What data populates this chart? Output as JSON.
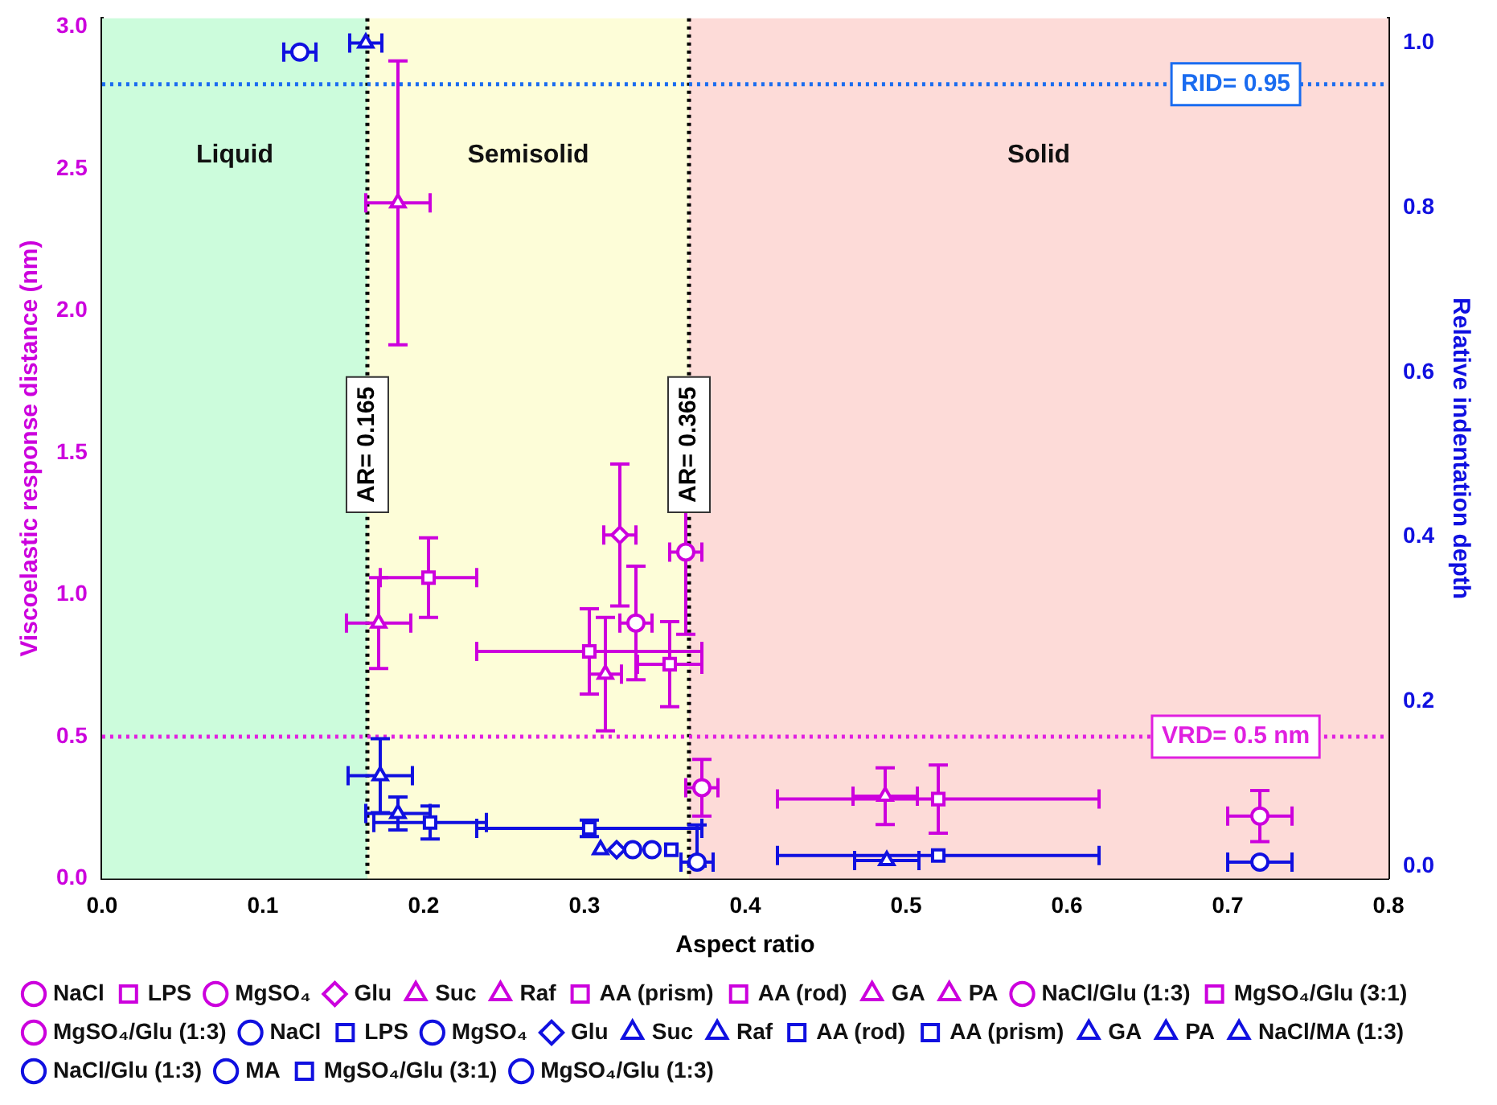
{
  "chart_data": {
    "type": "scatter",
    "xlabel": "Aspect ratio",
    "ylabel": "Viscoelastic response distance (nm)",
    "y2label": "Relative indentation depth",
    "xlim": [
      0,
      0.8
    ],
    "xticks": [
      {
        "value": 0,
        "label": "0.0"
      },
      0.1,
      0.2,
      0.3,
      0.4,
      0.5,
      0.6,
      0.7,
      0.8
    ],
    "ylim": [
      0,
      3.03
    ],
    "yticks": [
      {
        "value": 0,
        "label": "0.0"
      },
      0.5,
      {
        "value": 1,
        "label": "1.0"
      },
      1.5,
      {
        "value": 2,
        "label": "2.0"
      },
      2.5,
      {
        "value": 3,
        "label": "3.0"
      }
    ],
    "y2lim": [
      -0.015,
      1.03
    ],
    "y2ticks": [
      {
        "value": 0,
        "label": "0.0"
      },
      0.2,
      0.4,
      0.6,
      0.8,
      {
        "value": 1,
        "label": "1.0"
      }
    ],
    "grid": false,
    "legend": "bottom",
    "bands": [
      {
        "axis": "x",
        "from": 0,
        "to": 0.165,
        "label": "Liquid",
        "color": "#ccfcdc"
      },
      {
        "axis": "x",
        "from": 0.165,
        "to": 0.365,
        "label": "Semisolid",
        "color": "#fdfdd8"
      },
      {
        "axis": "x",
        "from": 0.365,
        "to": 0.8,
        "label": "Solid",
        "color": "#fddbd8"
      }
    ],
    "ref_lines": [
      {
        "axis": "x",
        "value": 0.165,
        "label": "AR= 0.165",
        "color": "#000000",
        "line_style": "dotted"
      },
      {
        "axis": "x",
        "value": 0.365,
        "label": "AR= 0.365",
        "color": "#000000",
        "line_style": "dotted"
      },
      {
        "axis": "y",
        "value": 0.5,
        "label": "VRD= 0.5 nm",
        "color": "#e020e0",
        "line_style": "dotted"
      },
      {
        "axis": "y2",
        "value": 0.95,
        "label": "RID= 0.95",
        "color": "#1a6cf0",
        "line_style": "dotted"
      }
    ],
    "series": [
      {
        "name": "NaCl",
        "color": "#cc00dd",
        "marker": "circle",
        "x": [
          0.72
        ],
        "values": [
          0.22
        ],
        "errors": [
          0.09
        ],
        "xerrors": [
          0.02
        ]
      },
      {
        "name": "LPS",
        "color": "#cc00dd",
        "marker": "square",
        "x": [
          0.52
        ],
        "values": [
          0.28
        ],
        "errors": [
          0.12
        ],
        "xerrors": [
          0.1
        ]
      },
      {
        "name": "MgSO₄",
        "color": "#cc00dd",
        "marker": "circle",
        "x": [
          0.373
        ],
        "values": [
          0.32
        ],
        "errors": [
          0.1
        ],
        "xerrors": [
          0.01
        ]
      },
      {
        "name": "Glu",
        "color": "#cc00dd",
        "marker": "diamond",
        "x": [
          0.322
        ],
        "values": [
          1.21
        ],
        "errors": [
          0.25
        ],
        "xerrors": [
          0.01
        ]
      },
      {
        "name": "Suc",
        "color": "#cc00dd",
        "marker": "triangle",
        "x": [
          0.184
        ],
        "values": [
          2.38
        ],
        "errors": [
          0.5
        ],
        "xerrors": [
          0.02
        ]
      },
      {
        "name": "Raf",
        "color": "#cc00dd",
        "marker": "triangle",
        "x": [
          0.487
        ],
        "values": [
          0.29
        ],
        "errors": [
          0.1
        ],
        "xerrors": [
          0.02
        ]
      },
      {
        "name": "AA (prism)",
        "color": "#cc00dd",
        "marker": "square",
        "x": [
          0.203
        ],
        "values": [
          1.06
        ],
        "errors": [
          0.14
        ],
        "xerrors": [
          0.03
        ]
      },
      {
        "name": "AA (rod)",
        "color": "#cc00dd",
        "marker": "square",
        "x": [
          0.303
        ],
        "values": [
          0.8
        ],
        "errors": [
          0.15
        ],
        "xerrors": [
          0.07
        ]
      },
      {
        "name": "GA",
        "color": "#cc00dd",
        "marker": "triangle",
        "x": [
          0.313
        ],
        "values": [
          0.72
        ],
        "errors": [
          0.2
        ],
        "xerrors": [
          0.01
        ]
      },
      {
        "name": "PA",
        "color": "#cc00dd",
        "marker": "triangle",
        "x": [
          0.172
        ],
        "values": [
          0.9
        ],
        "errors": [
          0.16
        ],
        "xerrors": [
          0.02
        ]
      },
      {
        "name": "NaCl/Glu (1:3)",
        "color": "#cc00dd",
        "marker": "circle",
        "x": [
          0.363
        ],
        "values": [
          1.15
        ],
        "errors": [
          0.29
        ],
        "xerrors": [
          0.01
        ]
      },
      {
        "name": "MgSO₄/Glu (3:1)",
        "color": "#cc00dd",
        "marker": "square",
        "x": [
          0.353
        ],
        "values": [
          0.755
        ],
        "errors": [
          0.15
        ],
        "xerrors": [
          0.02
        ]
      },
      {
        "name": "MgSO₄/Glu (1:3)",
        "color": "#cc00dd",
        "marker": "circle",
        "x": [
          0.332
        ],
        "values": [
          0.9
        ],
        "errors": [
          0.2
        ],
        "xerrors": [
          0.01
        ]
      },
      {
        "name": "NaCl",
        "color": "#1010e0",
        "marker": "circle",
        "axis": "y2",
        "x": [
          0.72
        ],
        "values": [
          0.005
        ],
        "xerrors": [
          0.02
        ]
      },
      {
        "name": "LPS",
        "color": "#1010e0",
        "marker": "square",
        "axis": "y2",
        "x": [
          0.52
        ],
        "values": [
          0.013
        ],
        "xerrors": [
          0.1
        ]
      },
      {
        "name": "MgSO₄",
        "color": "#1010e0",
        "marker": "circle",
        "axis": "y2",
        "x": [
          0.33
        ],
        "values": [
          0.02
        ]
      },
      {
        "name": "Glu",
        "color": "#1010e0",
        "marker": "diamond",
        "axis": "y2",
        "x": [
          0.32
        ],
        "values": [
          0.02
        ]
      },
      {
        "name": "Suc",
        "color": "#1010e0",
        "marker": "triangle",
        "axis": "y2",
        "x": [
          0.31
        ],
        "values": [
          0.02
        ]
      },
      {
        "name": "Raf",
        "color": "#1010e0",
        "marker": "triangle",
        "axis": "y2",
        "x": [
          0.488
        ],
        "values": [
          0.007
        ],
        "xerrors": [
          0.02
        ]
      },
      {
        "name": "AA (rod)",
        "color": "#1010e0",
        "marker": "square",
        "axis": "y2",
        "x": [
          0.303
        ],
        "values": [
          0.046
        ],
        "errors": [
          0.01
        ],
        "xerrors": [
          0.07
        ]
      },
      {
        "name": "AA (prism)",
        "color": "#1010e0",
        "marker": "square",
        "axis": "y2",
        "x": [
          0.204
        ],
        "values": [
          0.053
        ],
        "errors": [
          0.02
        ],
        "xerrors": [
          0.035
        ]
      },
      {
        "name": "GA",
        "color": "#1010e0",
        "marker": "triangle",
        "axis": "y2",
        "x": [
          0.184
        ],
        "values": [
          0.064
        ],
        "errors": [
          0.02
        ],
        "xerrors": [
          0.02
        ]
      },
      {
        "name": "PA",
        "color": "#1010e0",
        "marker": "triangle",
        "axis": "y2",
        "x": [
          0.173
        ],
        "values": [
          0.11
        ],
        "errors": [
          0.045
        ],
        "xerrors": [
          0.02
        ]
      },
      {
        "name": "NaCl/MA (1:3)",
        "color": "#1010e0",
        "marker": "triangle",
        "axis": "y2",
        "x": [
          0.164
        ],
        "values": [
          1.0
        ],
        "xerrors": [
          0.01
        ]
      },
      {
        "name": "NaCl/Glu (1:3)",
        "color": "#1010e0",
        "marker": "circle",
        "axis": "y2",
        "x": [
          0.342
        ],
        "values": [
          0.02
        ]
      },
      {
        "name": "MA",
        "color": "#1010e0",
        "marker": "circle",
        "axis": "y2",
        "x": [
          0.123
        ],
        "values": [
          0.989
        ],
        "xerrors": [
          0.01
        ]
      },
      {
        "name": "MgSO₄/Glu (3:1)",
        "color": "#1010e0",
        "marker": "square",
        "axis": "y2",
        "x": [
          0.354
        ],
        "values": [
          0.02
        ]
      },
      {
        "name": "MgSO₄/Glu (1:3)",
        "color": "#1010e0",
        "marker": "circle",
        "axis": "y2",
        "x": [
          0.37
        ],
        "values": [
          0.005
        ],
        "errors": [
          [
            0,
            0.05
          ]
        ],
        "xerrors": [
          0.01
        ]
      }
    ]
  }
}
